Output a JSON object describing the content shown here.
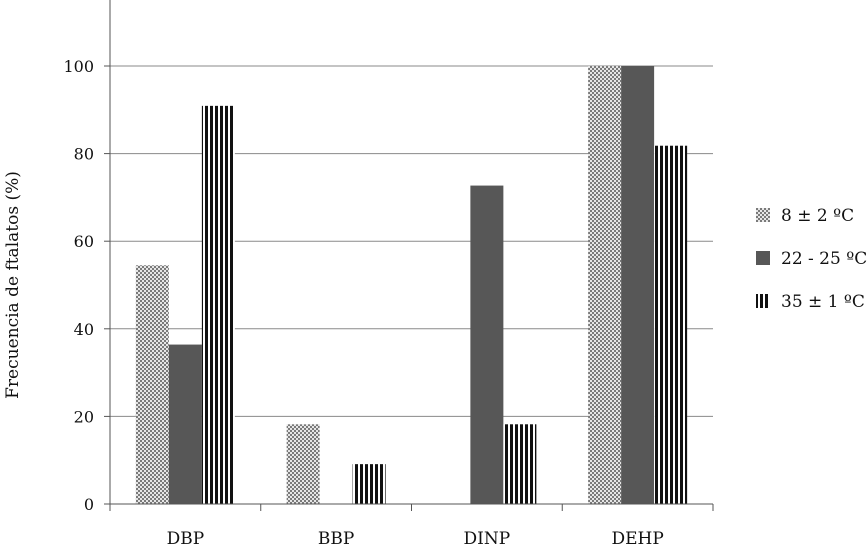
{
  "chart_data": {
    "type": "bar",
    "title": "",
    "xlabel": "",
    "ylabel": "Frecuencia de ftalatos (%)",
    "ylim": [
      0,
      100
    ],
    "yticks": [
      0,
      20,
      40,
      60,
      80,
      100
    ],
    "grid": true,
    "legend_position": "right",
    "categories": [
      "DBP",
      "BBP",
      "DINP",
      "DEHP"
    ],
    "series": [
      {
        "name": "8 ± 2 ºC",
        "pattern": "crosshatch",
        "color": "#9a9a9a",
        "values": [
          54.5,
          18.2,
          0,
          100
        ]
      },
      {
        "name": "22 - 25 ºC",
        "pattern": "solid",
        "color": "#575757",
        "values": [
          36.4,
          0,
          72.7,
          100
        ]
      },
      {
        "name": "35 ± 1 ºC",
        "pattern": "vertical-stripes",
        "color": "#1a1a1a",
        "values": [
          90.9,
          9.1,
          18.2,
          81.8
        ]
      }
    ]
  }
}
